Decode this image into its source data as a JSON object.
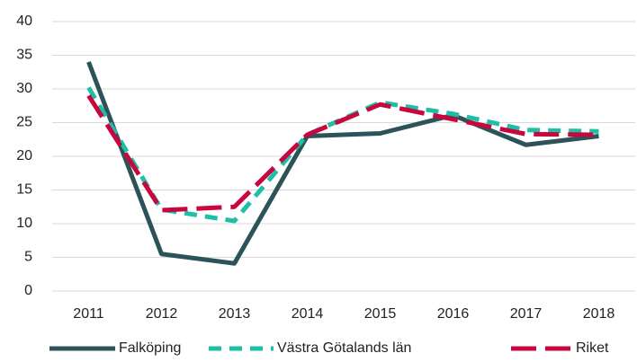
{
  "chart_data": {
    "type": "line",
    "categories": [
      "2011",
      "2012",
      "2013",
      "2014",
      "2015",
      "2016",
      "2017",
      "2018"
    ],
    "series": [
      {
        "name": "Falköping",
        "color": "#2b5358",
        "dash": "solid",
        "values": [
          34,
          5.5,
          4.1,
          23,
          23.4,
          26.1,
          21.7,
          23
        ]
      },
      {
        "name": "Västra Götalands län",
        "color": "#1dbfa7",
        "dash": "dashed",
        "values": [
          30.2,
          12.1,
          10.4,
          23.2,
          28,
          26.3,
          23.9,
          23.7
        ]
      },
      {
        "name": "Riket",
        "color": "#c8073f",
        "dash": "long-dash",
        "values": [
          29,
          12,
          12.5,
          23.2,
          27.7,
          25.5,
          23.3,
          23.2
        ]
      }
    ],
    "ylim": [
      0,
      40
    ],
    "yticks": [
      0,
      5,
      10,
      15,
      20,
      25,
      30,
      35,
      40
    ],
    "grid": true,
    "legend": "bottom"
  }
}
